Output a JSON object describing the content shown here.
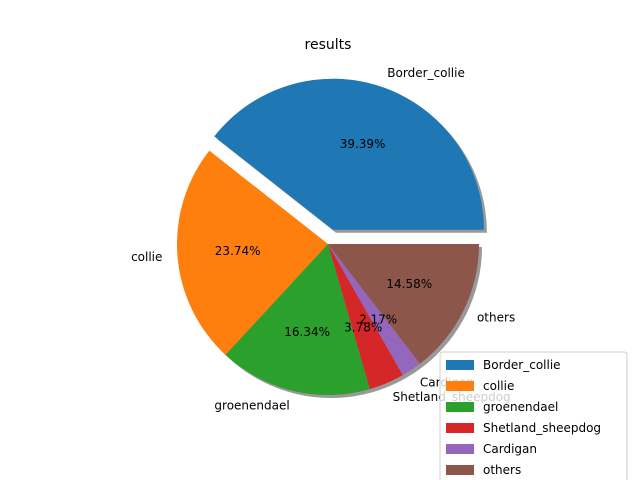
{
  "chart_data": {
    "type": "pie",
    "title": "results",
    "categories": [
      "Border_collie",
      "collie",
      "groenendael",
      "Shetland_sheepdog",
      "Cardigan",
      "others"
    ],
    "values": [
      39.39,
      23.74,
      16.34,
      3.78,
      2.17,
      14.58
    ],
    "value_labels": [
      "39.39%",
      "23.74%",
      "16.34%",
      "3.78%",
      "2.17%",
      "14.58%"
    ],
    "explode": [
      0.1,
      0,
      0,
      0,
      0,
      0
    ],
    "shadow": true,
    "start_angle_deg": 0,
    "direction": "counterclockwise",
    "colors": [
      "#1f77b4",
      "#ff7f0e",
      "#2ca02c",
      "#d62728",
      "#9467bd",
      "#8c564b"
    ],
    "legend": {
      "placement": "lower-right",
      "entries": [
        "Border_collie",
        "collie",
        "groenendael",
        "Shetland_sheepdog",
        "Cardigan",
        "others"
      ]
    }
  }
}
